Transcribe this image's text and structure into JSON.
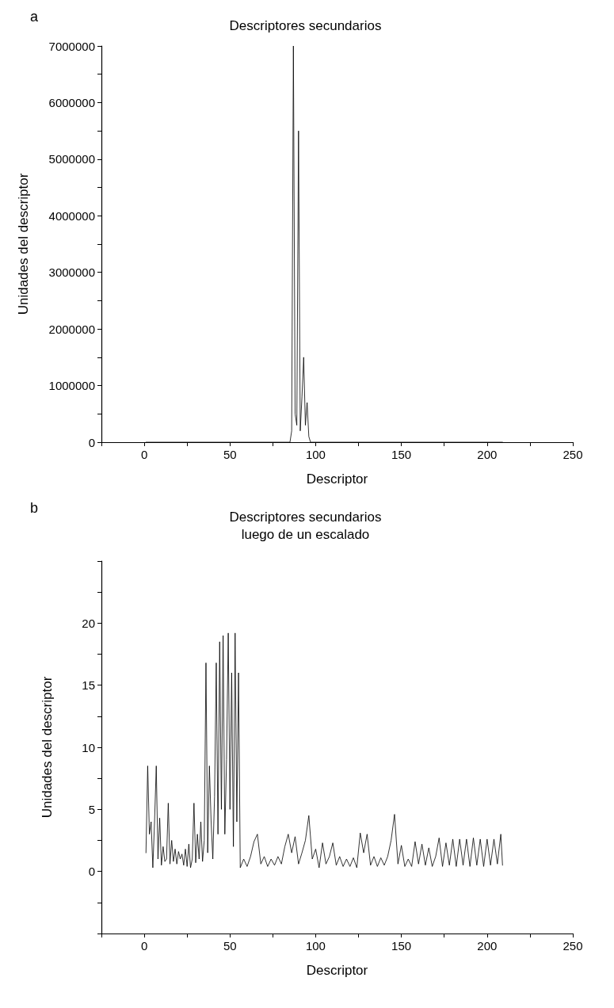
{
  "chart_data": [
    {
      "type": "line",
      "title": "Descriptores secundarios",
      "xlabel": "Descriptor",
      "ylabel": "Unidades del descriptor",
      "annotations": [
        "a"
      ],
      "x": [
        1,
        85,
        86,
        87,
        88,
        89,
        90,
        91,
        92,
        93,
        94,
        95,
        96,
        97,
        209
      ],
      "series": [
        {
          "color": "#000000",
          "values": [
            0,
            0,
            200000,
            7000000,
            500000,
            300000,
            5500000,
            200000,
            800000,
            1500000,
            300000,
            700000,
            100000,
            0,
            0
          ]
        }
      ],
      "xlim": [
        -25,
        250
      ],
      "xticks": [
        {
          "value": -25,
          "label": null
        },
        0,
        {
          "value": 25,
          "label": null
        },
        50,
        {
          "value": 75,
          "label": null
        },
        100,
        {
          "value": 125,
          "label": null
        },
        150,
        {
          "value": 175,
          "label": null
        },
        200,
        {
          "value": 225,
          "label": null
        },
        250
      ],
      "ylim": [
        0,
        7000000
      ],
      "yticks": [
        0,
        {
          "value": 500000,
          "label": null
        },
        1000000,
        {
          "value": 1500000,
          "label": null
        },
        2000000,
        {
          "value": 2500000,
          "label": null
        },
        3000000,
        {
          "value": 3500000,
          "label": null
        },
        4000000,
        {
          "value": 4500000,
          "label": null
        },
        5000000,
        {
          "value": 5500000,
          "label": null
        },
        6000000,
        {
          "value": 6500000,
          "label": null
        },
        7000000
      ],
      "grid": false,
      "marker": "none",
      "line_style": "solid"
    },
    {
      "type": "line",
      "title": "Descriptores secundarios\nluego de un escalado",
      "xlabel": "Descriptor",
      "ylabel": "Unidades del descriptor",
      "annotations": [
        "b"
      ],
      "x": [
        1,
        2,
        3,
        4,
        5,
        6,
        7,
        8,
        9,
        10,
        11,
        12,
        13,
        14,
        15,
        16,
        17,
        18,
        19,
        20,
        21,
        22,
        23,
        24,
        25,
        26,
        27,
        28,
        29,
        30,
        31,
        32,
        33,
        34,
        35,
        36,
        37,
        38,
        39,
        40,
        41,
        42,
        43,
        44,
        45,
        46,
        47,
        48,
        49,
        50,
        51,
        52,
        53,
        54,
        55,
        56,
        58,
        60,
        62,
        64,
        66,
        68,
        70,
        72,
        74,
        76,
        78,
        80,
        82,
        84,
        86,
        88,
        90,
        92,
        94,
        96,
        98,
        100,
        102,
        104,
        106,
        108,
        110,
        112,
        114,
        116,
        118,
        120,
        122,
        124,
        126,
        128,
        130,
        132,
        134,
        136,
        138,
        140,
        142,
        144,
        146,
        148,
        150,
        152,
        154,
        156,
        158,
        160,
        162,
        164,
        166,
        168,
        170,
        172,
        174,
        176,
        178,
        180,
        182,
        184,
        186,
        188,
        190,
        192,
        194,
        196,
        198,
        200,
        202,
        204,
        206,
        208,
        209
      ],
      "series": [
        {
          "color": "#000000",
          "values": [
            1.5,
            8.5,
            3,
            4,
            0.3,
            4,
            8.5,
            1,
            4.3,
            0.5,
            2,
            0.8,
            1,
            5.5,
            0.6,
            2.5,
            0.8,
            1.8,
            0.6,
            1.6,
            1,
            1.4,
            0.5,
            1.8,
            0.4,
            2.2,
            0.3,
            1,
            5.5,
            0.7,
            3,
            1,
            4,
            0.8,
            2.5,
            16.8,
            1.5,
            8.5,
            4,
            1,
            6,
            16.8,
            3,
            18.5,
            5,
            19,
            3,
            9,
            19.2,
            5,
            16,
            2,
            19.2,
            4,
            16,
            0.3,
            1,
            0.4,
            1.2,
            2.4,
            3,
            0.6,
            1.2,
            0.4,
            1,
            0.5,
            1.2,
            0.6,
            2,
            3,
            1.5,
            2.8,
            0.6,
            1.5,
            2.5,
            4.5,
            1,
            1.8,
            0.3,
            2.3,
            0.6,
            1.2,
            2.3,
            0.5,
            1.2,
            0.4,
            1,
            0.4,
            1.1,
            0.3,
            3.1,
            1.5,
            3,
            0.5,
            1.2,
            0.4,
            1.1,
            0.5,
            1.2,
            2.5,
            4.6,
            0.6,
            2.1,
            0.4,
            1,
            0.4,
            2.4,
            0.6,
            2.2,
            0.5,
            1.9,
            0.4,
            1.2,
            2.7,
            0.4,
            2.3,
            0.5,
            2.6,
            0.4,
            2.6,
            0.5,
            2.6,
            0.4,
            2.7,
            0.5,
            2.6,
            0.4,
            2.6,
            0.5,
            2.6,
            0.6,
            3,
            0.5
          ]
        }
      ],
      "xlim": [
        -25,
        250
      ],
      "xticks": [
        {
          "value": -25,
          "label": null
        },
        0,
        {
          "value": 25,
          "label": null
        },
        50,
        {
          "value": 75,
          "label": null
        },
        100,
        {
          "value": 125,
          "label": null
        },
        150,
        {
          "value": 175,
          "label": null
        },
        200,
        {
          "value": 225,
          "label": null
        },
        250
      ],
      "ylim": [
        -5,
        25
      ],
      "yticks": [
        {
          "value": -5,
          "label": null
        },
        {
          "value": -2.5,
          "label": null
        },
        0,
        {
          "value": 2.5,
          "label": null
        },
        5,
        {
          "value": 7.5,
          "label": null
        },
        10,
        {
          "value": 12.5,
          "label": null
        },
        15,
        {
          "value": 17.5,
          "label": null
        },
        20,
        {
          "value": 22.5,
          "label": null
        },
        {
          "value": 25,
          "label": null
        }
      ],
      "grid": false,
      "marker": "none",
      "line_style": "solid"
    }
  ]
}
